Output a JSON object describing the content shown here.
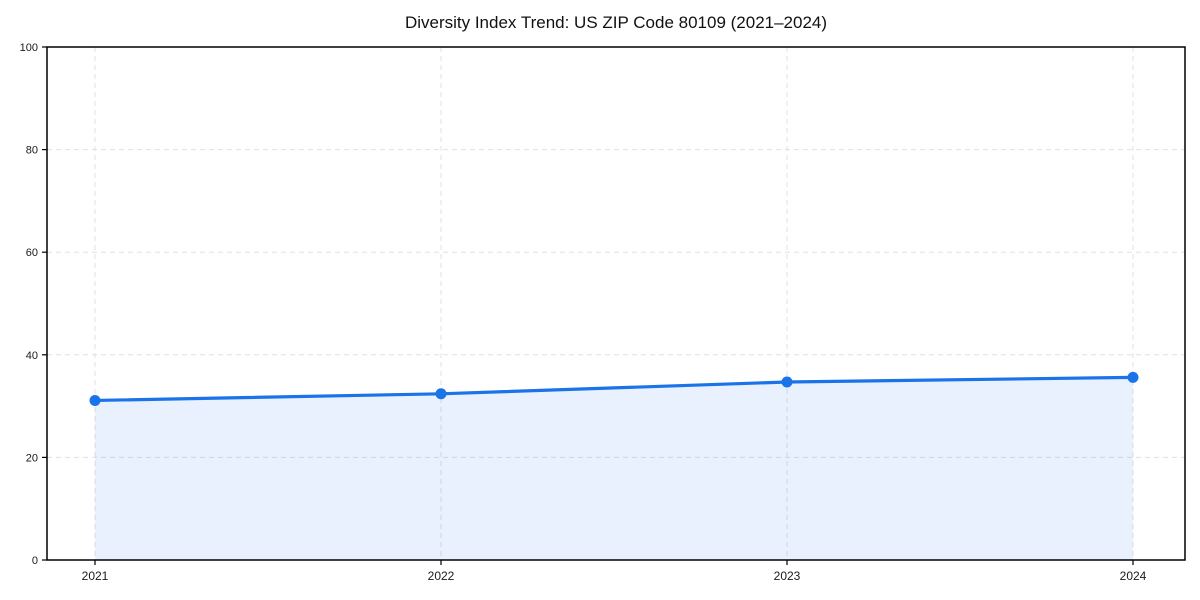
{
  "chart_data": {
    "type": "area",
    "title": "Diversity Index Trend: US ZIP Code 80109 (2021–2024)",
    "x": [
      "2021",
      "2022",
      "2023",
      "2024"
    ],
    "series": [
      {
        "name": "Diversity Index",
        "values": [
          31.1,
          32.4,
          34.7,
          35.6
        ]
      }
    ],
    "xlabel": "",
    "ylabel": "",
    "ylim": [
      0,
      100
    ],
    "yticks": [
      0,
      20,
      40,
      60,
      80,
      100
    ],
    "grid": "dashed, horizontal at each y tick and vertical at each year",
    "legend": "none",
    "marker": "circle",
    "colors": {
      "line": "#1a73e8",
      "marker": "#1a73e8",
      "fill": "rgba(26,115,232,0.10)",
      "grid": "#e0e0e0",
      "spine": "#000000",
      "tick_label": "#1a1a1a",
      "title": "#111111",
      "background": "#ffffff"
    }
  }
}
